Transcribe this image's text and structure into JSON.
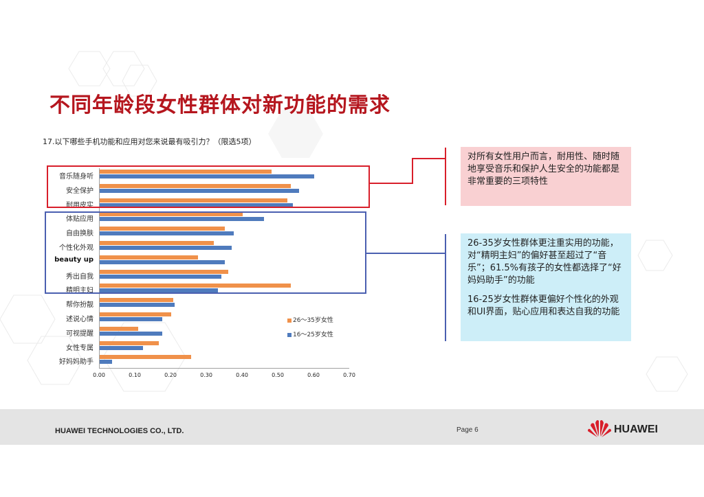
{
  "slide": {
    "title": "不同年龄段女性群体对新功能的需求",
    "question": "17.以下哪些手机功能和应用对您来说最有吸引力？（限选5项）"
  },
  "chart_data": {
    "type": "bar",
    "orientation": "horizontal",
    "title": "17.以下哪些手机功能和应用对您来说最有吸引力？（限选5项）",
    "xlabel": "",
    "ylabel": "",
    "xlim": [
      0,
      0.7
    ],
    "xticks": [
      "0.00",
      "0.10",
      "0.20",
      "0.30",
      "0.40",
      "0.50",
      "0.60",
      "0.70"
    ],
    "grid": false,
    "legend_position": "right-inside",
    "categories": [
      "音乐随身听",
      "安全保护",
      "耐用皮实",
      "体贴应用",
      "自由换肤",
      "个性化外观",
      "beauty up",
      "秀出自我",
      "精明主妇",
      "帮你扮靓",
      "述说心情",
      "可视提醒",
      "女性专属",
      "好妈妈助手"
    ],
    "series": [
      {
        "name": "26～35岁女性",
        "color": "#f0914a",
        "values": [
          0.48,
          0.535,
          0.525,
          0.4,
          0.35,
          0.32,
          0.275,
          0.36,
          0.535,
          0.205,
          0.2,
          0.107,
          0.165,
          0.255
        ]
      },
      {
        "name": "16～25岁女性",
        "color": "#4f7bbd",
        "values": [
          0.6,
          0.557,
          0.54,
          0.46,
          0.375,
          0.37,
          0.35,
          0.34,
          0.33,
          0.21,
          0.175,
          0.175,
          0.122,
          0.035
        ]
      }
    ]
  },
  "legend": {
    "items": [
      {
        "label": "26～35岁女性",
        "color": "#f0914a"
      },
      {
        "label": "16～25岁女性",
        "color": "#4f7bbd"
      }
    ]
  },
  "notes": {
    "red": {
      "text": "对所有女性用户而言，耐用性、随时随地享受音乐和保护人生安全的功能都是非常重要的三项特性",
      "bg": "#f9d0d2",
      "line_color": "#d81e2a"
    },
    "blue": {
      "para1": "26-35岁女性群体更注重实用的功能，对“精明主妇”的偏好甚至超过了“音乐”；61.5%有孩子的女性都选择了“好妈妈助手”的功能",
      "para2": "16-25岁女性群体更偏好个性化的外观和UI界面，贴心应用和表达自我的功能",
      "bg": "#cdeef8",
      "line_color": "#4a5fb0"
    }
  },
  "footer": {
    "company": "HUAWEI TECHNOLOGIES CO., LTD.",
    "page": "Page 6",
    "logo_text": "HUAWEI"
  }
}
